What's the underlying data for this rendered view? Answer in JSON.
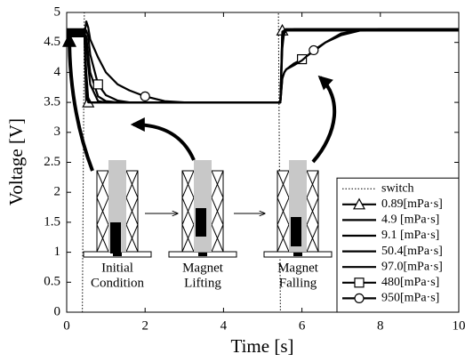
{
  "chart_data": {
    "type": "line",
    "xlabel": "Time [s]",
    "ylabel": "Voltage [V]",
    "xlim": [
      0,
      10
    ],
    "ylim": [
      0,
      5
    ],
    "xticks": [
      0,
      2,
      4,
      6,
      8,
      10
    ],
    "yticks": [
      0,
      0.5,
      1,
      1.5,
      2,
      2.5,
      3,
      3.5,
      4,
      4.5,
      5
    ],
    "legend": "lower right",
    "annotations": [
      [
        "Initial",
        "Condition"
      ],
      [
        "Magnet",
        "Lifting"
      ],
      [
        "Magnet",
        "Falling"
      ]
    ],
    "x": [
      0,
      0.4,
      0.45,
      0.5,
      0.55,
      0.6,
      0.8,
      1.0,
      1.3,
      1.6,
      2.0,
      2.5,
      3,
      4,
      5,
      5.4,
      5.45,
      5.5,
      5.55,
      5.6,
      5.8,
      6.0,
      6.3,
      6.6,
      7.0,
      7.5,
      8,
      9,
      10
    ],
    "series": [
      {
        "name": "switch",
        "color": "#000000",
        "style": "dotted",
        "values": [
          0,
          0,
          5,
          5,
          5,
          5,
          5,
          5,
          5,
          5,
          5,
          5,
          5,
          5,
          5,
          5,
          0,
          0,
          0,
          0,
          0,
          0,
          0,
          0,
          0,
          0,
          0,
          0,
          0
        ]
      },
      {
        "name": "0.89[mPa·s]",
        "color": "#000000",
        "style": "solid",
        "marker": "triangle",
        "values": [
          4.72,
          4.72,
          4.72,
          3.45,
          3.5,
          3.5,
          3.5,
          3.5,
          3.5,
          3.5,
          3.5,
          3.5,
          3.5,
          3.5,
          3.5,
          3.5,
          3.5,
          4.7,
          4.72,
          4.72,
          4.72,
          4.72,
          4.72,
          4.72,
          4.72,
          4.72,
          4.72,
          4.72,
          4.72
        ]
      },
      {
        "name": "4.9 [mPa·s]",
        "color": "#000000",
        "style": "solid",
        "values": [
          4.7,
          4.7,
          4.7,
          3.7,
          3.5,
          3.5,
          3.5,
          3.5,
          3.5,
          3.5,
          3.5,
          3.5,
          3.5,
          3.5,
          3.5,
          3.5,
          3.5,
          4.68,
          4.7,
          4.7,
          4.7,
          4.7,
          4.7,
          4.7,
          4.7,
          4.7,
          4.7,
          4.7,
          4.7
        ]
      },
      {
        "name": "9.1 [mPa·s]",
        "color": "#000000",
        "style": "solid",
        "values": [
          4.68,
          4.68,
          4.68,
          4.0,
          3.55,
          3.5,
          3.5,
          3.5,
          3.5,
          3.5,
          3.5,
          3.5,
          3.5,
          3.5,
          3.5,
          3.5,
          3.5,
          4.4,
          4.7,
          4.7,
          4.7,
          4.7,
          4.7,
          4.7,
          4.7,
          4.7,
          4.7,
          4.7,
          4.7
        ]
      },
      {
        "name": "50.4[mPa·s]",
        "color": "#000000",
        "style": "solid",
        "values": [
          4.65,
          4.65,
          4.65,
          4.5,
          4.1,
          3.8,
          3.52,
          3.5,
          3.5,
          3.5,
          3.5,
          3.5,
          3.5,
          3.5,
          3.5,
          3.5,
          3.5,
          4.6,
          4.7,
          4.72,
          4.72,
          4.72,
          4.72,
          4.72,
          4.72,
          4.72,
          4.72,
          4.72,
          4.72
        ]
      },
      {
        "name": "97.0[mPa·s]",
        "color": "#000000",
        "style": "solid",
        "values": [
          4.65,
          4.65,
          4.65,
          4.6,
          4.3,
          4.0,
          3.6,
          3.52,
          3.5,
          3.5,
          3.5,
          3.5,
          3.5,
          3.5,
          3.5,
          3.5,
          3.5,
          4.5,
          4.65,
          4.7,
          4.72,
          4.72,
          4.72,
          4.72,
          4.72,
          4.72,
          4.72,
          4.72,
          4.72
        ]
      },
      {
        "name": "480[mPa·s]",
        "color": "#000000",
        "style": "solid",
        "marker": "square",
        "values": [
          4.62,
          4.62,
          4.62,
          4.7,
          4.6,
          4.3,
          3.8,
          3.62,
          3.53,
          3.5,
          3.5,
          3.5,
          3.5,
          3.5,
          3.5,
          3.5,
          3.5,
          3.9,
          4.0,
          4.05,
          4.15,
          4.22,
          4.35,
          4.5,
          4.65,
          4.7,
          4.72,
          4.72,
          4.72
        ]
      },
      {
        "name": "950[mPa·s]",
        "color": "#000000",
        "style": "solid",
        "marker": "circle",
        "values": [
          4.6,
          4.6,
          4.6,
          4.85,
          4.75,
          4.55,
          4.25,
          4.0,
          3.8,
          3.7,
          3.6,
          3.52,
          3.5,
          3.5,
          3.5,
          3.5,
          3.5,
          3.9,
          4.0,
          4.05,
          4.12,
          4.2,
          4.37,
          4.5,
          4.62,
          4.7,
          4.72,
          4.72,
          4.72
        ]
      }
    ]
  }
}
